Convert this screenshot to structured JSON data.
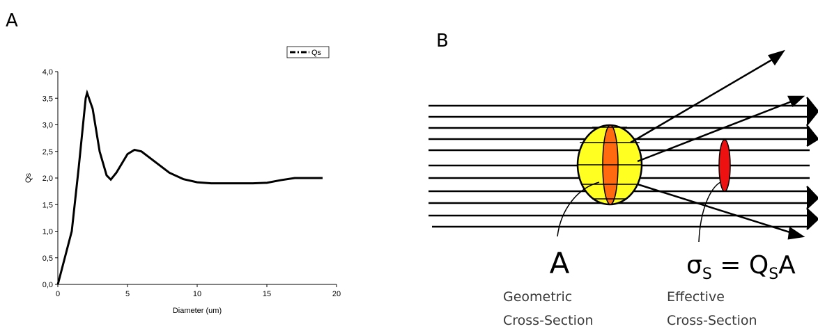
{
  "panel_labels": [
    "A",
    "B"
  ],
  "chart_data": {
    "type": "line",
    "x_label": "Diameter (um)",
    "y_label": "Qs",
    "x": [
      0,
      0.5,
      1,
      1.5,
      2,
      2.1,
      2.5,
      3,
      3.5,
      3.8,
      4.2,
      5,
      5.5,
      6,
      7,
      8,
      9,
      10,
      11,
      12,
      13,
      14,
      15,
      16,
      17,
      18,
      19
    ],
    "series": [
      {
        "name": "Qs",
        "color": "#000000",
        "values": [
          0,
          0.5,
          1.0,
          2.2,
          3.5,
          3.6,
          3.3,
          2.5,
          2.05,
          1.97,
          2.1,
          2.45,
          2.53,
          2.5,
          2.3,
          2.1,
          1.98,
          1.92,
          1.9,
          1.9,
          1.9,
          1.9,
          1.91,
          1.96,
          2.0,
          2.0,
          2.0
        ]
      }
    ],
    "xlim": [
      0,
      20
    ],
    "xticks": [
      0,
      5,
      10,
      15,
      20
    ],
    "ylim": [
      0,
      4
    ],
    "yticks": [
      {
        "value": 0,
        "label": "0,0"
      },
      {
        "value": 0.5,
        "label": "0,5"
      },
      {
        "value": 1,
        "label": "1,0"
      },
      {
        "value": 1.5,
        "label": "1,5"
      },
      {
        "value": 2,
        "label": "2,0"
      },
      {
        "value": 2.5,
        "label": "2,5"
      },
      {
        "value": 3,
        "label": "3,0"
      },
      {
        "value": 3.5,
        "label": "3,5"
      },
      {
        "value": 4,
        "label": "4,0"
      }
    ],
    "legend": "top-right"
  },
  "diagram": {
    "geometric_symbol": "A",
    "effective_formula": [
      "σ",
      "S",
      " = Q",
      "S",
      "A"
    ],
    "geometric_caption": [
      "Geometric",
      "Cross-Section"
    ],
    "effective_caption": [
      "Effective",
      "Cross-Section"
    ]
  }
}
